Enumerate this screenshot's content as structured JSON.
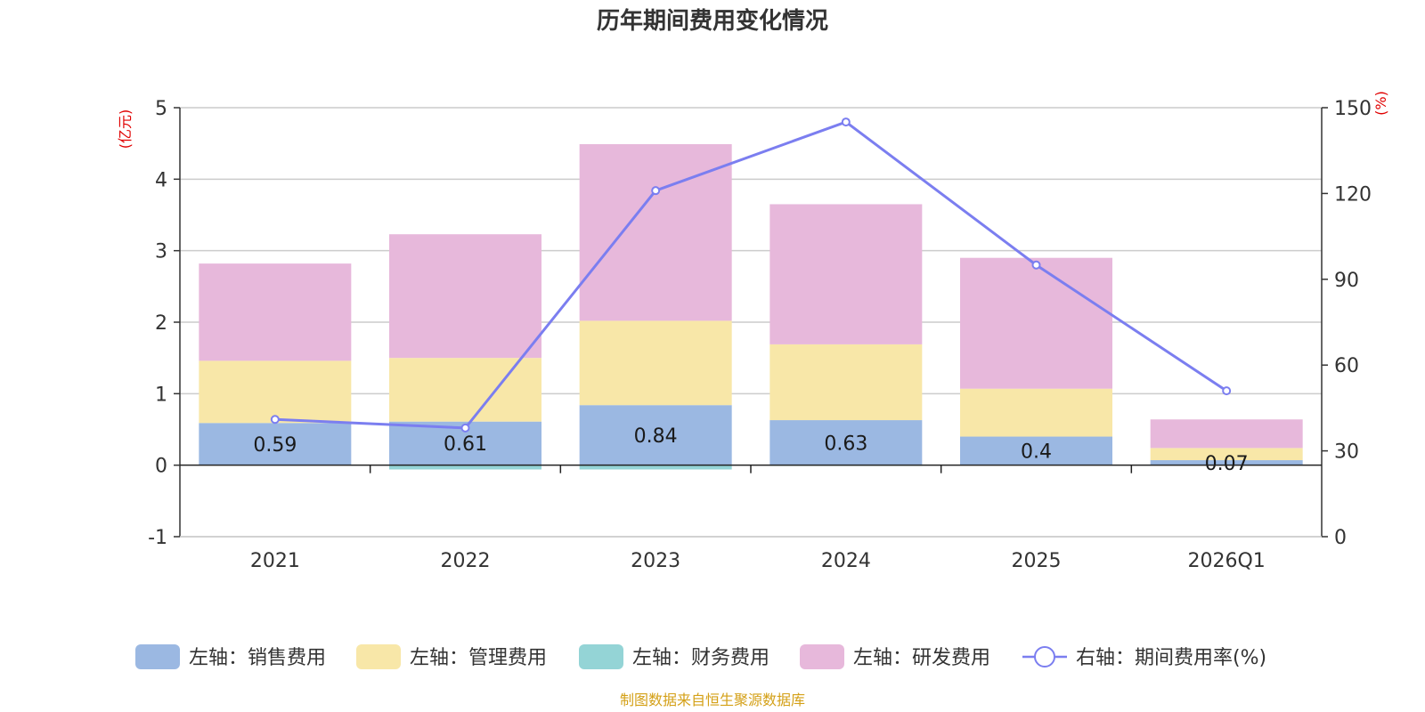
{
  "chart_data": {
    "type": "bar",
    "stacked": true,
    "title": "历年期间费用变化情况",
    "categories": [
      "2021",
      "2022",
      "2023",
      "2024",
      "2025",
      "2026Q1"
    ],
    "left_axis": {
      "unit": "(亿元)",
      "ticks": [
        "5",
        "4",
        "3",
        "2",
        "1",
        "0",
        "-1"
      ],
      "min": -1,
      "max": 5
    },
    "right_axis": {
      "unit": "(%)",
      "ticks": [
        "150",
        "120",
        "90",
        "60",
        "30",
        "0"
      ],
      "min": 0,
      "max": 150
    },
    "series": [
      {
        "name": "左轴：销售费用",
        "color": "#9bb8e2",
        "axis": "left",
        "values": [
          0.59,
          0.61,
          0.84,
          0.63,
          0.4,
          0.07
        ],
        "labels": [
          "0.59",
          "0.61",
          "0.84",
          "0.63",
          "0.4",
          "0.07"
        ]
      },
      {
        "name": "左轴：管理费用",
        "color": "#f8e7a8",
        "axis": "left",
        "values": [
          0.87,
          0.89,
          1.18,
          1.06,
          0.67,
          0.17
        ]
      },
      {
        "name": "左轴：财务费用",
        "color": "#94d4d6",
        "axis": "left",
        "values": [
          0.0,
          -0.06,
          -0.06,
          -0.01,
          0.0,
          0.0
        ]
      },
      {
        "name": "左轴：研发费用",
        "color": "#e7b8db",
        "axis": "left",
        "values": [
          1.36,
          1.73,
          2.47,
          1.96,
          1.83,
          0.4
        ]
      },
      {
        "name": "右轴：期间费用率(%)",
        "color": "#7b7ef0",
        "axis": "right",
        "type": "line",
        "values": [
          41,
          38,
          121,
          145,
          95,
          51
        ]
      }
    ],
    "source": "制图数据来自恒生聚源数据库"
  }
}
